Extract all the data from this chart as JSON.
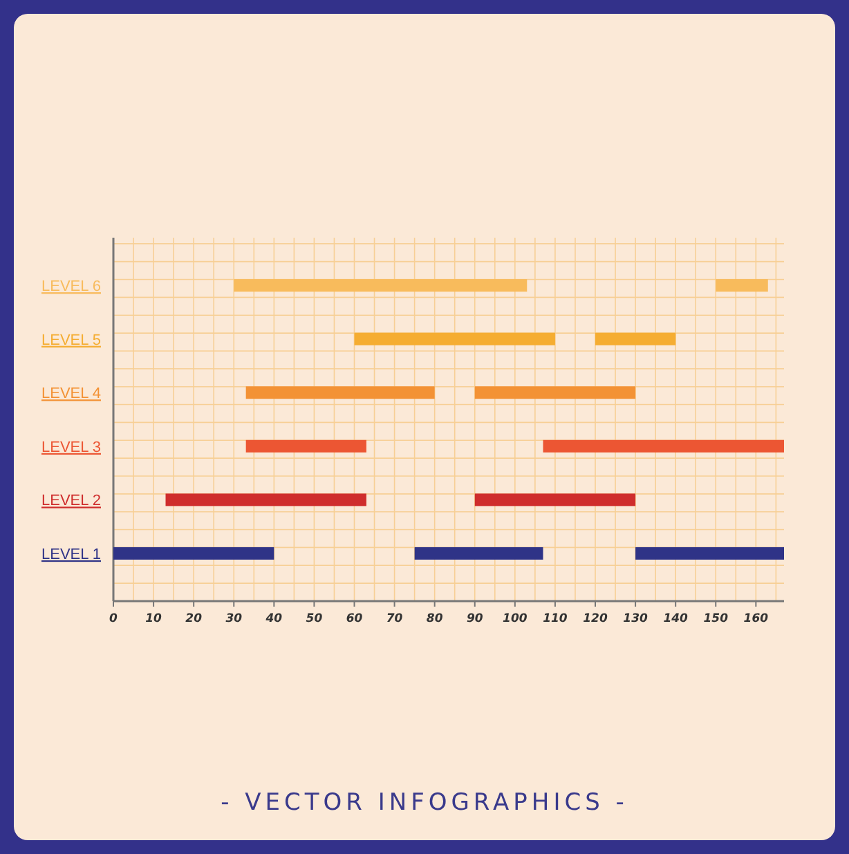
{
  "chart_data": {
    "type": "bar",
    "orientation": "horizontal",
    "title": "- VECTOR INFOGRAPHICS -",
    "categories": [
      "LEVEL 6",
      "LEVEL 5",
      "LEVEL 4",
      "LEVEL 3",
      "LEVEL 2",
      "LEVEL 1"
    ],
    "series": [
      {
        "colors": [
          "#f8bb5c",
          "#f5ad32",
          "#f39235",
          "#ec5633",
          "#cf2d2c",
          "#2f3387"
        ],
        "base": [
          30,
          60,
          33,
          33,
          13,
          0
        ],
        "values": [
          73,
          50,
          47,
          30,
          50,
          40
        ]
      },
      {
        "colors": [
          "#f8bb5c",
          "#f5ad32",
          "#f39235",
          "#ec5633",
          "#cf2d2c",
          "#2f3387"
        ],
        "base": [
          150,
          120,
          90,
          107,
          90,
          75
        ],
        "values": [
          13,
          20,
          40,
          60,
          40,
          32
        ]
      },
      {
        "colors": [
          null,
          null,
          null,
          null,
          null,
          "#2f3387"
        ],
        "base": [
          null,
          null,
          null,
          null,
          null,
          130
        ],
        "values": [
          null,
          null,
          null,
          null,
          null,
          37
        ]
      }
    ],
    "xlim": [
      0,
      167
    ],
    "xticks": [
      0,
      10,
      20,
      30,
      40,
      50,
      60,
      70,
      80,
      90,
      100,
      110,
      120,
      130,
      140,
      150,
      160
    ],
    "grid": true
  }
}
